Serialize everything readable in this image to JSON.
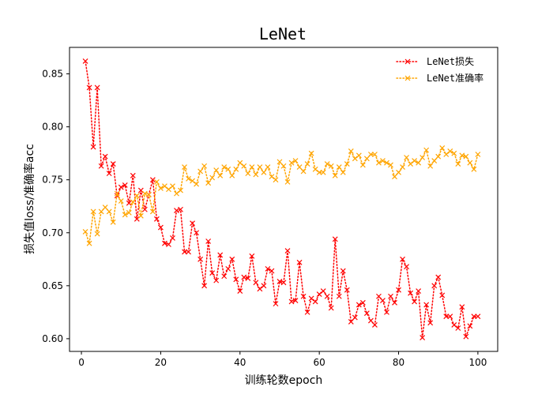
{
  "chart_data": {
    "type": "line",
    "title": "LeNet",
    "xlabel": "训练轮数epoch",
    "ylabel": "损失值loss/准确率acc",
    "xlim": [
      -3,
      105
    ],
    "ylim": [
      0.588,
      0.875
    ],
    "xticks": [
      0,
      20,
      40,
      60,
      80,
      100
    ],
    "yticks": [
      0.6,
      0.65,
      0.7,
      0.75,
      0.8,
      0.85
    ],
    "ytick_labels": [
      "0.60",
      "0.65",
      "0.70",
      "0.75",
      "0.80",
      "0.85"
    ],
    "grid": false,
    "legend_position": "top-right",
    "x": [
      1,
      2,
      3,
      4,
      5,
      6,
      7,
      8,
      9,
      10,
      11,
      12,
      13,
      14,
      15,
      16,
      17,
      18,
      19,
      20,
      21,
      22,
      23,
      24,
      25,
      26,
      27,
      28,
      29,
      30,
      31,
      32,
      33,
      34,
      35,
      36,
      37,
      38,
      39,
      40,
      41,
      42,
      43,
      44,
      45,
      46,
      47,
      48,
      49,
      50,
      51,
      52,
      53,
      54,
      55,
      56,
      57,
      58,
      59,
      60,
      61,
      62,
      63,
      64,
      65,
      66,
      67,
      68,
      69,
      70,
      71,
      72,
      73,
      74,
      75,
      76,
      77,
      78,
      79,
      80,
      81,
      82,
      83,
      84,
      85,
      86,
      87,
      88,
      89,
      90,
      91,
      92,
      93,
      94,
      95,
      96,
      97,
      98,
      99,
      100
    ],
    "series": [
      {
        "name": "LeNet损失",
        "color": "#ff0000",
        "marker": "x",
        "linestyle": "dotted",
        "values": [
          0.862,
          0.837,
          0.781,
          0.837,
          0.763,
          0.772,
          0.756,
          0.765,
          0.735,
          0.743,
          0.745,
          0.728,
          0.754,
          0.713,
          0.74,
          0.722,
          0.736,
          0.75,
          0.713,
          0.705,
          0.69,
          0.689,
          0.695,
          0.721,
          0.722,
          0.682,
          0.682,
          0.709,
          0.7,
          0.675,
          0.65,
          0.692,
          0.662,
          0.655,
          0.679,
          0.659,
          0.666,
          0.675,
          0.656,
          0.645,
          0.658,
          0.657,
          0.678,
          0.653,
          0.647,
          0.65,
          0.666,
          0.664,
          0.633,
          0.654,
          0.653,
          0.683,
          0.635,
          0.636,
          0.672,
          0.64,
          0.625,
          0.638,
          0.635,
          0.642,
          0.645,
          0.64,
          0.629,
          0.694,
          0.64,
          0.664,
          0.646,
          0.616,
          0.62,
          0.632,
          0.634,
          0.624,
          0.617,
          0.613,
          0.64,
          0.636,
          0.625,
          0.64,
          0.634,
          0.646,
          0.675,
          0.668,
          0.643,
          0.635,
          0.645,
          0.601,
          0.632,
          0.615,
          0.65,
          0.658,
          0.641,
          0.621,
          0.621,
          0.613,
          0.61,
          0.63,
          0.602,
          0.612,
          0.621,
          0.621
        ]
      },
      {
        "name": "LeNet准确率",
        "color": "#ffa500",
        "marker": "x",
        "linestyle": "dotted",
        "values": [
          0.701,
          0.69,
          0.72,
          0.699,
          0.72,
          0.724,
          0.72,
          0.71,
          0.737,
          0.73,
          0.717,
          0.719,
          0.729,
          0.735,
          0.716,
          0.737,
          0.736,
          0.72,
          0.748,
          0.742,
          0.744,
          0.741,
          0.744,
          0.737,
          0.74,
          0.762,
          0.751,
          0.749,
          0.746,
          0.758,
          0.763,
          0.747,
          0.752,
          0.759,
          0.754,
          0.762,
          0.76,
          0.754,
          0.76,
          0.766,
          0.763,
          0.756,
          0.762,
          0.755,
          0.762,
          0.757,
          0.762,
          0.753,
          0.75,
          0.767,
          0.763,
          0.748,
          0.766,
          0.768,
          0.762,
          0.758,
          0.765,
          0.775,
          0.76,
          0.757,
          0.757,
          0.765,
          0.763,
          0.754,
          0.762,
          0.757,
          0.765,
          0.777,
          0.77,
          0.773,
          0.764,
          0.77,
          0.774,
          0.774,
          0.766,
          0.768,
          0.766,
          0.764,
          0.753,
          0.757,
          0.762,
          0.771,
          0.765,
          0.768,
          0.766,
          0.771,
          0.778,
          0.763,
          0.768,
          0.772,
          0.78,
          0.774,
          0.777,
          0.775,
          0.765,
          0.773,
          0.772,
          0.766,
          0.76,
          0.774
        ]
      }
    ]
  }
}
